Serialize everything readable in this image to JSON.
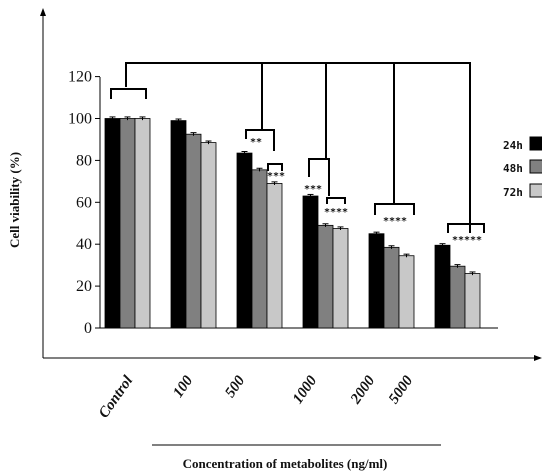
{
  "chart_data": {
    "type": "bar",
    "title": "",
    "xlabel": "Concentration of metabolites (ng/ml)",
    "ylabel": "Cell viability (%)",
    "ylim": [
      0,
      120
    ],
    "yticks": [
      "0",
      "20",
      "40",
      "60",
      "80",
      "100",
      "120"
    ],
    "categories": [
      "Control",
      "100",
      "500",
      "1000",
      "2000",
      "5000"
    ],
    "series": [
      {
        "name": "24h",
        "color": "#000000",
        "values": [
          100,
          99,
          83.5,
          63,
          45,
          39.5
        ]
      },
      {
        "name": "48h",
        "color": "#808080",
        "values": [
          100,
          92.5,
          75.5,
          49,
          38.5,
          29.5
        ]
      },
      {
        "name": "72h",
        "color": "#c8c8c8",
        "values": [
          100,
          88.5,
          69,
          47.5,
          34.5,
          26
        ]
      }
    ],
    "error_bars": true,
    "legend_position": "right",
    "grid": false,
    "significance": [
      {
        "category": "500",
        "labels": [
          "**",
          "***"
        ]
      },
      {
        "category": "1000",
        "labels": [
          "***",
          "****"
        ]
      },
      {
        "category": "2000",
        "labels": [
          "****"
        ]
      },
      {
        "category": "5000",
        "labels": [
          "*****"
        ]
      }
    ]
  }
}
